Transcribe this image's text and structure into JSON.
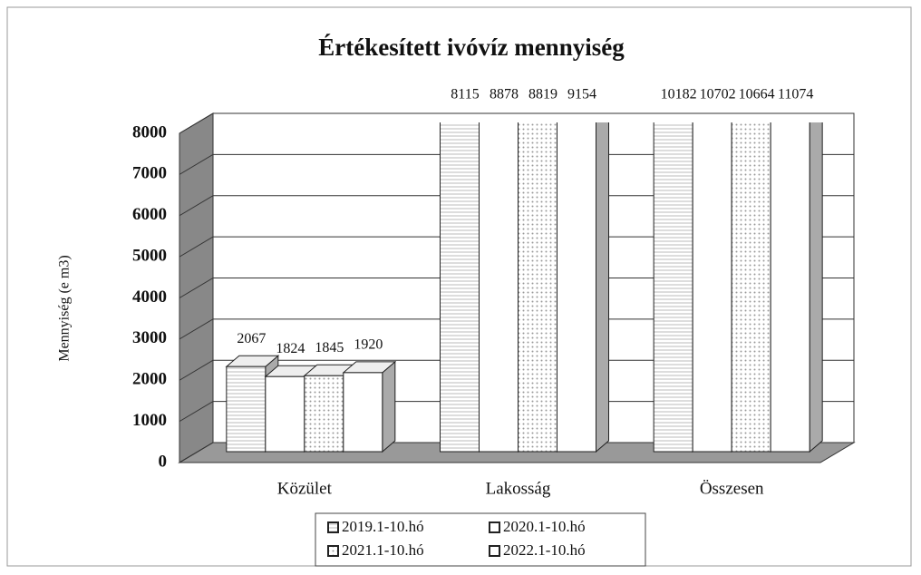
{
  "chart_data": {
    "type": "bar3d",
    "title": "Értékesített ivóvíz mennyiség",
    "y_label": "Mennyiség (e m3)",
    "categories": [
      "Közület",
      "Lakosság",
      "Összesen"
    ],
    "series": [
      {
        "name": "2019.1-10.hó",
        "color": "#ffffff",
        "pattern": "lines",
        "values": [
          2067,
          8115,
          10182
        ]
      },
      {
        "name": "2020.1-10.hó",
        "color": "#ffffff",
        "pattern": "none",
        "values": [
          1824,
          8878,
          10702
        ]
      },
      {
        "name": "2021.1-10.hó",
        "color": "#ffffff",
        "pattern": "dots",
        "values": [
          1845,
          8819,
          10664
        ]
      },
      {
        "name": "2022.1-10.hó",
        "color": "#ffffff",
        "pattern": "none",
        "values": [
          1920,
          9154,
          11074
        ]
      }
    ],
    "ylim": [
      0,
      8000
    ],
    "yticks": [
      0,
      1000,
      2000,
      3000,
      4000,
      5000,
      6000,
      7000,
      8000
    ],
    "grid": true,
    "legend": "bottom"
  }
}
